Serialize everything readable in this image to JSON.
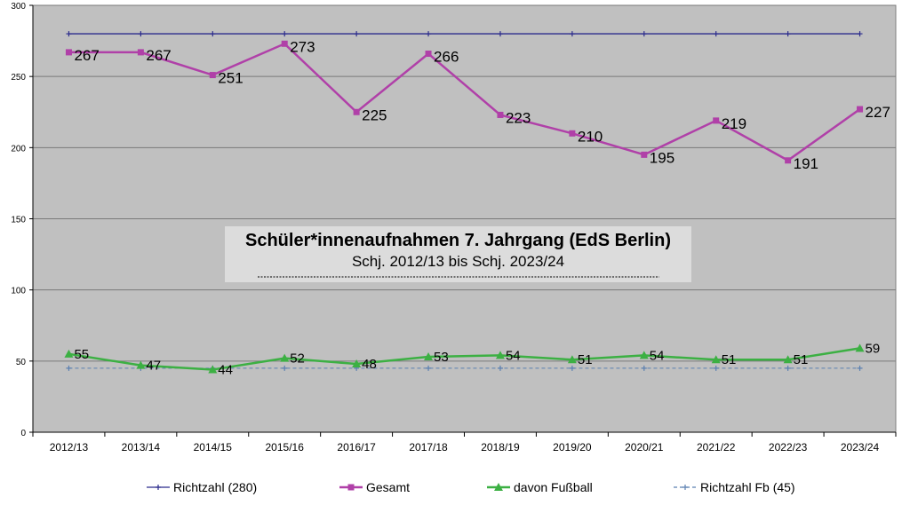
{
  "chart_data": {
    "type": "line",
    "title": "Schüler*innenaufnahmen 7. Jahrgang (EdS Berlin)",
    "subtitle": "Schj. 2012/13 bis Schj. 2023/24",
    "categories": [
      "2012/13",
      "2013/14",
      "2014/15",
      "2015/16",
      "2016/17",
      "2017/18",
      "2018/19",
      "2019/20",
      "2020/21",
      "2021/22",
      "2022/23",
      "2023/24"
    ],
    "ylim": [
      0,
      300
    ],
    "yticks": [
      0,
      50,
      100,
      150,
      200,
      250,
      300
    ],
    "grid": true,
    "legend_position": "bottom",
    "series": [
      {
        "name": "Richtzahl (280)",
        "values": [
          280,
          280,
          280,
          280,
          280,
          280,
          280,
          280,
          280,
          280,
          280,
          280
        ],
        "color": "#2b2b8c",
        "marker": "plus",
        "dashed": false,
        "labels": false
      },
      {
        "name": "Gesamt",
        "values": [
          267,
          267,
          251,
          273,
          225,
          266,
          223,
          210,
          195,
          219,
          191,
          227
        ],
        "color": "#b040a8",
        "marker": "square",
        "dashed": false,
        "labels": true
      },
      {
        "name": "davon Fußball",
        "values": [
          55,
          47,
          44,
          52,
          48,
          53,
          54,
          51,
          54,
          51,
          51,
          59
        ],
        "color": "#3cb043",
        "marker": "triangle",
        "dashed": false,
        "labels": true
      },
      {
        "name": "Richtzahl Fb (45)",
        "values": [
          45,
          45,
          45,
          45,
          45,
          45,
          45,
          45,
          45,
          45,
          45,
          45
        ],
        "color": "#5a7fb0",
        "marker": "plus",
        "dashed": true,
        "labels": false
      }
    ]
  },
  "colors": {
    "plot_background": "#c0c0c0",
    "title_box": "#dcdcdc",
    "grid": "#7a7a7a"
  }
}
